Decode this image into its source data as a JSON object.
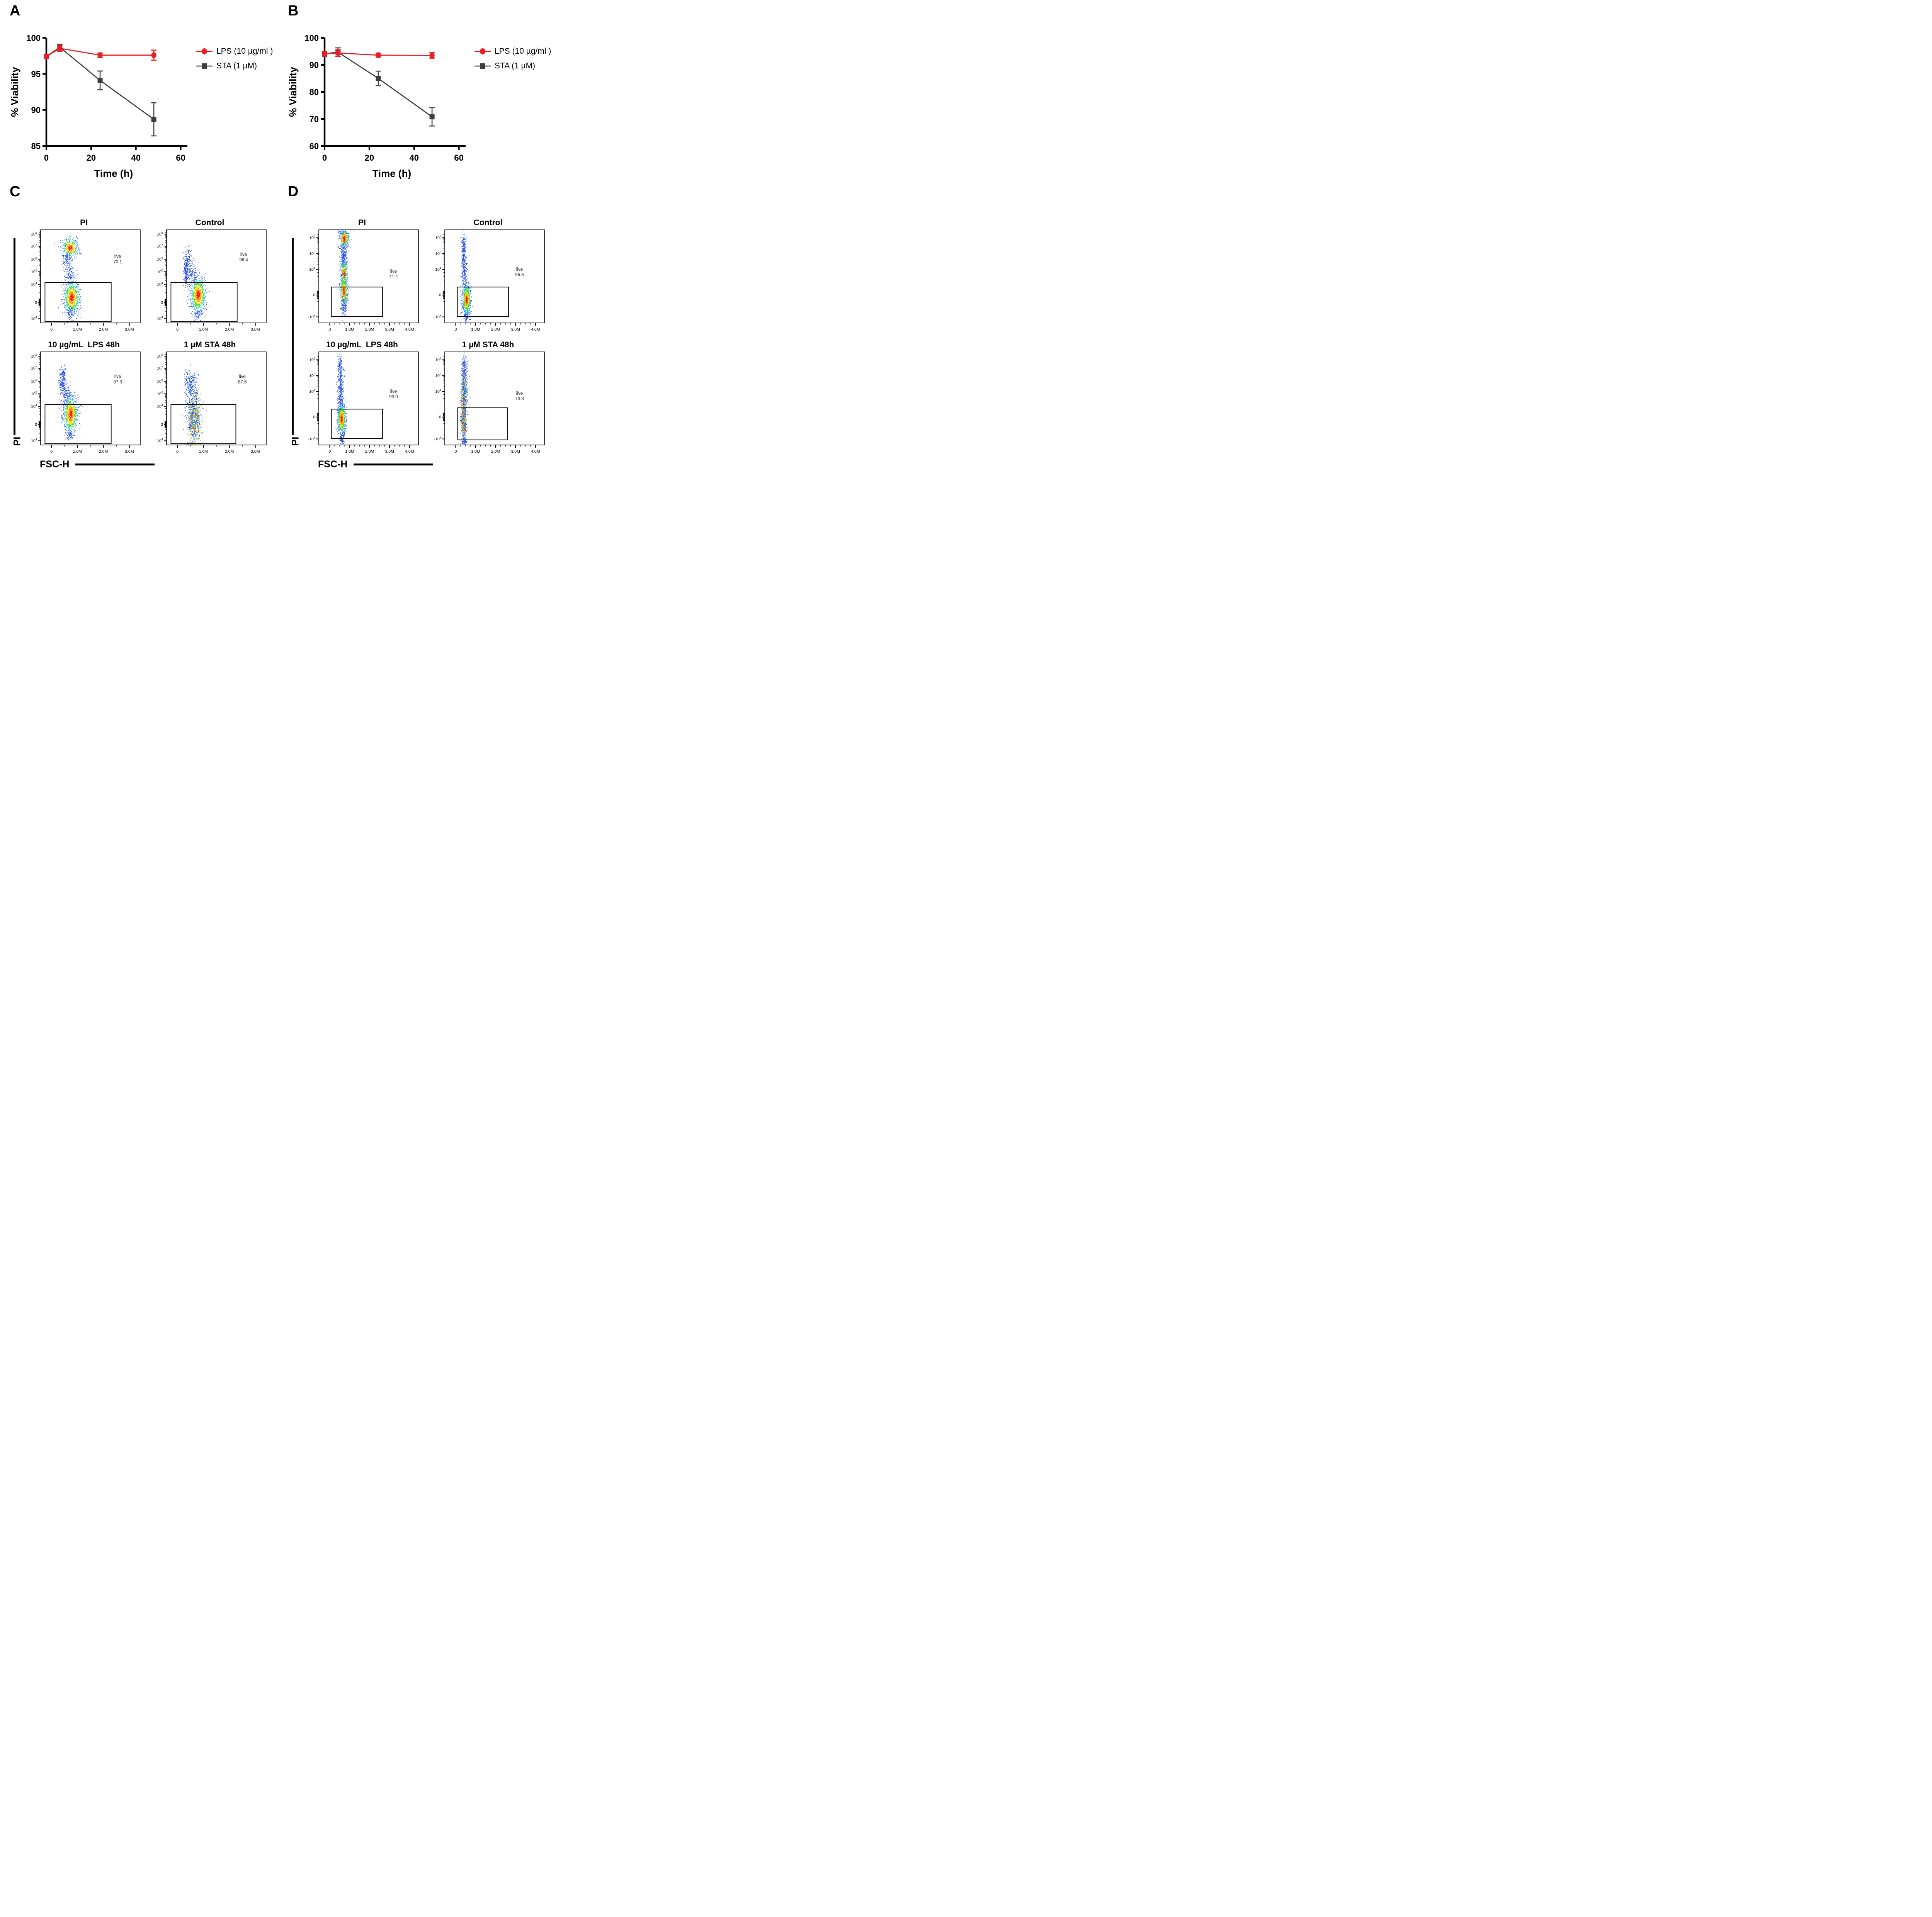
{
  "panel_labels": {
    "A": "A",
    "B": "B",
    "C": "C",
    "D": "D"
  },
  "chart_data": [
    {
      "id": "A",
      "type": "line",
      "xlabel": "Time (h)",
      "ylabel": "% Viability",
      "x": [
        0,
        6,
        24,
        48
      ],
      "xticks": [
        0,
        20,
        40,
        60
      ],
      "xlim": [
        0,
        63
      ],
      "ylim": [
        85,
        100
      ],
      "yticks": [
        85,
        90,
        95,
        100
      ],
      "series": [
        {
          "name": "STA (1 µM)",
          "color": "#3d3d3d",
          "marker": "square",
          "values": [
            97.4,
            98.7,
            94.1,
            88.7
          ],
          "errors": [
            0.25,
            0.4,
            1.3,
            2.3
          ]
        },
        {
          "name": "LPS (10 µg/ml )",
          "color": "#ed1c24",
          "marker": "circle",
          "values": [
            97.4,
            98.55,
            97.6,
            97.6
          ],
          "errors": [
            0.25,
            0.45,
            0.3,
            0.7
          ]
        }
      ],
      "legend": [
        {
          "name": "LPS (10 µg/ml )",
          "color": "#ed1c24",
          "marker": "circle"
        },
        {
          "name": "STA (1 µM)",
          "color": "#3d3d3d",
          "marker": "square"
        }
      ]
    },
    {
      "id": "B",
      "type": "line",
      "xlabel": "Time (h)",
      "ylabel": "% Viability",
      "x": [
        0,
        6,
        24,
        48
      ],
      "xticks": [
        0,
        20,
        40,
        60
      ],
      "xlim": [
        0,
        63
      ],
      "ylim": [
        60,
        100
      ],
      "yticks": [
        60,
        70,
        80,
        90,
        100
      ],
      "series": [
        {
          "name": "STA (1 µM)",
          "color": "#3d3d3d",
          "marker": "square",
          "values": [
            94.1,
            94.7,
            85.0,
            70.8
          ],
          "errors": [
            0.9,
            1.6,
            2.7,
            3.4
          ]
        },
        {
          "name": "LPS (10 µg/ml )",
          "color": "#ed1c24",
          "marker": "circle",
          "values": [
            94.1,
            94.4,
            93.6,
            93.5
          ],
          "errors": [
            0.8,
            1.2,
            0.7,
            1.0
          ]
        }
      ],
      "legend": [
        {
          "name": "LPS (10 µg/ml )",
          "color": "#ed1c24",
          "marker": "circle"
        },
        {
          "name": "STA (1 µM)",
          "color": "#3d3d3d",
          "marker": "square"
        }
      ]
    },
    {
      "id": "C",
      "type": "scatter",
      "xlabel": "FSC-H",
      "ylabel": "PI",
      "xlim": [
        -0.42,
        3.42
      ],
      "x_minor_step": 0.5,
      "x_ticks": [
        {
          "v": 0,
          "label": "0"
        },
        {
          "v": 1,
          "label": "1.0M"
        },
        {
          "v": 2,
          "label": "2.0M"
        },
        {
          "v": 3,
          "label": "3.0M"
        }
      ],
      "y_ticks": [
        {
          "base": "10",
          "exp": "8",
          "f": 0.045
        },
        {
          "base": "10",
          "exp": "7",
          "f": 0.175
        },
        {
          "base": "10",
          "exp": "6",
          "f": 0.315
        },
        {
          "base": "10",
          "exp": "5",
          "f": 0.45
        },
        {
          "base": "10",
          "exp": "4",
          "f": 0.585
        },
        {
          "base": "0",
          "f": 0.78
        },
        {
          "base": "-10",
          "exp": "4",
          "f": 0.955
        }
      ],
      "plots": [
        {
          "title": "PI",
          "gate_label": "live",
          "gate_value": "70.1",
          "gate": {
            "x1": -0.25,
            "x2": 2.3,
            "f1": 0.565,
            "f2": 0.985
          },
          "label_pos": {
            "x": 2.55,
            "f": 0.3
          },
          "clusters": [
            {
              "cx": 0.72,
              "cy": 0.195,
              "sx": 0.16,
              "sy": 0.05,
              "n": 430,
              "pal": "hot"
            },
            {
              "cx": 0.6,
              "cy": 0.31,
              "sx": 0.08,
              "sy": 0.055,
              "n": 130,
              "pal": "blue"
            },
            {
              "cx": 0.72,
              "cy": 0.47,
              "sx": 0.1,
              "sy": 0.06,
              "n": 90,
              "pal": "blue"
            },
            {
              "cx": 0.78,
              "cy": 0.73,
              "sx": 0.15,
              "sy": 0.085,
              "n": 900,
              "pal": "hot"
            },
            {
              "cx": 0.72,
              "cy": 0.9,
              "sx": 0.07,
              "sy": 0.03,
              "n": 60,
              "pal": "blue"
            }
          ]
        },
        {
          "title": "Control",
          "gate_label": "live",
          "gate_value": "96.4",
          "gate": {
            "x1": -0.25,
            "x2": 2.3,
            "f1": 0.565,
            "f2": 0.985
          },
          "label_pos": {
            "x": 2.55,
            "f": 0.28
          },
          "clusters": [
            {
              "cx": 0.33,
              "cy": 0.44,
              "sx": 0.05,
              "sy": 0.08,
              "n": 240,
              "pal": "blue"
            },
            {
              "cx": 0.42,
              "cy": 0.29,
              "sx": 0.07,
              "sy": 0.05,
              "n": 90,
              "pal": "blue"
            },
            {
              "cx": 0.55,
              "cy": 0.47,
              "sx": 0.12,
              "sy": 0.06,
              "n": 130,
              "pal": "blue"
            },
            {
              "cx": 0.8,
              "cy": 0.7,
              "sx": 0.14,
              "sy": 0.09,
              "n": 950,
              "pal": "hot"
            },
            {
              "cx": 0.75,
              "cy": 0.92,
              "sx": 0.08,
              "sy": 0.03,
              "n": 50,
              "pal": "blue"
            }
          ]
        },
        {
          "title": "10 µg/mL  LPS 48h",
          "gate_label": "live",
          "gate_value": "97.3",
          "gate": {
            "x1": -0.25,
            "x2": 2.3,
            "f1": 0.565,
            "f2": 0.985
          },
          "label_pos": {
            "x": 2.55,
            "f": 0.28
          },
          "clusters": [
            {
              "cx": 0.42,
              "cy": 0.33,
              "sx": 0.07,
              "sy": 0.06,
              "n": 170,
              "pal": "blue"
            },
            {
              "cx": 0.47,
              "cy": 0.22,
              "sx": 0.05,
              "sy": 0.04,
              "n": 60,
              "pal": "blue"
            },
            {
              "cx": 0.58,
              "cy": 0.46,
              "sx": 0.11,
              "sy": 0.06,
              "n": 150,
              "pal": "blue"
            },
            {
              "cx": 0.74,
              "cy": 0.67,
              "sx": 0.13,
              "sy": 0.1,
              "n": 900,
              "pal": "hot"
            },
            {
              "cx": 0.7,
              "cy": 0.9,
              "sx": 0.07,
              "sy": 0.03,
              "n": 60,
              "pal": "blue"
            }
          ]
        },
        {
          "title": "1 µM STA 48h",
          "gate_label": "live",
          "gate_value": "87.6",
          "gate": {
            "x1": -0.25,
            "x2": 2.25,
            "f1": 0.565,
            "f2": 0.985
          },
          "label_pos": {
            "x": 2.5,
            "f": 0.28
          },
          "clusters": [
            {
              "cx": 0.5,
              "cy": 0.36,
              "sx": 0.11,
              "sy": 0.08,
              "n": 260,
              "pal": "blue"
            },
            {
              "cx": 0.62,
              "cy": 0.6,
              "sx": 0.15,
              "sy": 0.13,
              "n": 520,
              "pal": "speckle"
            },
            {
              "cx": 0.66,
              "cy": 0.8,
              "sx": 0.13,
              "sy": 0.1,
              "n": 470,
              "pal": "hotspeckle"
            },
            {
              "cx": 0.6,
              "cy": 0.985,
              "sx": 0.18,
              "sy": 0.006,
              "n": 90,
              "pal": "hotspeckle"
            }
          ]
        }
      ]
    },
    {
      "id": "D",
      "type": "scatter",
      "xlabel": "FSC-H",
      "ylabel": "PI",
      "xlim": [
        -0.55,
        4.45
      ],
      "x_minor_step": 0.25,
      "x_ticks": [
        {
          "v": 0,
          "label": "0"
        },
        {
          "v": 1,
          "label": "1.0M"
        },
        {
          "v": 2,
          "label": "2.0M"
        },
        {
          "v": 3,
          "label": "3.0M"
        },
        {
          "v": 4,
          "label": "4.0M"
        }
      ],
      "y_ticks": [
        {
          "base": "10",
          "exp": "6",
          "f": 0.085
        },
        {
          "base": "10",
          "exp": "5",
          "f": 0.255
        },
        {
          "base": "10",
          "exp": "4",
          "f": 0.425
        },
        {
          "base": "0",
          "f": 0.7
        },
        {
          "base": "-10",
          "exp": "4",
          "f": 0.935
        }
      ],
      "plots": [
        {
          "title": "PI",
          "gate_label": "live",
          "gate_value": "41.4",
          "gate": {
            "x1": 0.08,
            "x2": 2.65,
            "f1": 0.615,
            "f2": 0.93
          },
          "label_pos": {
            "x": 3.2,
            "f": 0.46
          },
          "clusters": [
            {
              "cx": 0.7,
              "cy": 0.045,
              "sx": 0.1,
              "sy": 0.025,
              "n": 80,
              "pal": "blue"
            },
            {
              "cx": 0.73,
              "cy": 0.095,
              "sx": 0.12,
              "sy": 0.05,
              "n": 340,
              "pal": "hot"
            },
            {
              "cx": 0.7,
              "cy": 0.28,
              "sx": 0.095,
              "sy": 0.08,
              "n": 240,
              "pal": "blue"
            },
            {
              "cx": 0.72,
              "cy": 0.475,
              "sx": 0.075,
              "sy": 0.07,
              "n": 400,
              "pal": "hot"
            },
            {
              "cx": 0.71,
              "cy": 0.66,
              "sx": 0.085,
              "sy": 0.08,
              "n": 450,
              "pal": "hot"
            },
            {
              "cx": 0.7,
              "cy": 0.83,
              "sx": 0.07,
              "sy": 0.045,
              "n": 130,
              "pal": "blue"
            }
          ]
        },
        {
          "title": "Control",
          "gate_label": "live",
          "gate_value": "95.6",
          "gate": {
            "x1": 0.08,
            "x2": 2.65,
            "f1": 0.615,
            "f2": 0.93
          },
          "label_pos": {
            "x": 3.2,
            "f": 0.44
          },
          "clusters": [
            {
              "cx": 0.42,
              "cy": 0.36,
              "sx": 0.065,
              "sy": 0.15,
              "n": 330,
              "pal": "blue"
            },
            {
              "cx": 0.4,
              "cy": 0.16,
              "sx": 0.05,
              "sy": 0.05,
              "n": 80,
              "pal": "blue"
            },
            {
              "cx": 0.55,
              "cy": 0.75,
              "sx": 0.095,
              "sy": 0.08,
              "n": 900,
              "pal": "hot"
            },
            {
              "cx": 0.52,
              "cy": 0.94,
              "sx": 0.05,
              "sy": 0.025,
              "n": 60,
              "pal": "blue"
            }
          ]
        },
        {
          "title": "10 µg/mL  LPS 48h",
          "gate_label": "live",
          "gate_value": "93.0",
          "gate": {
            "x1": 0.08,
            "x2": 2.65,
            "f1": 0.615,
            "f2": 0.93
          },
          "label_pos": {
            "x": 3.2,
            "f": 0.44
          },
          "clusters": [
            {
              "cx": 0.5,
              "cy": 0.14,
              "sx": 0.06,
              "sy": 0.06,
              "n": 90,
              "pal": "blue"
            },
            {
              "cx": 0.55,
              "cy": 0.38,
              "sx": 0.08,
              "sy": 0.11,
              "n": 340,
              "pal": "blue"
            },
            {
              "cx": 0.6,
              "cy": 0.72,
              "sx": 0.095,
              "sy": 0.08,
              "n": 850,
              "pal": "hot"
            },
            {
              "cx": 0.6,
              "cy": 0.93,
              "sx": 0.05,
              "sy": 0.03,
              "n": 70,
              "pal": "blue"
            }
          ]
        },
        {
          "title": "1 µM STA 48h",
          "gate_label": "live",
          "gate_value": "73.8",
          "gate": {
            "x1": 0.1,
            "x2": 2.6,
            "f1": 0.6,
            "f2": 0.945
          },
          "label_pos": {
            "x": 3.2,
            "f": 0.46
          },
          "clusters": [
            {
              "cx": 0.42,
              "cy": 0.18,
              "sx": 0.07,
              "sy": 0.07,
              "n": 160,
              "pal": "blue"
            },
            {
              "cx": 0.43,
              "cy": 0.43,
              "sx": 0.085,
              "sy": 0.11,
              "n": 450,
              "pal": "speckle"
            },
            {
              "cx": 0.4,
              "cy": 0.72,
              "sx": 0.075,
              "sy": 0.11,
              "n": 560,
              "pal": "hotspeckle"
            },
            {
              "cx": 0.43,
              "cy": 0.96,
              "sx": 0.06,
              "sy": 0.02,
              "n": 80,
              "pal": "blue"
            }
          ]
        }
      ]
    }
  ]
}
